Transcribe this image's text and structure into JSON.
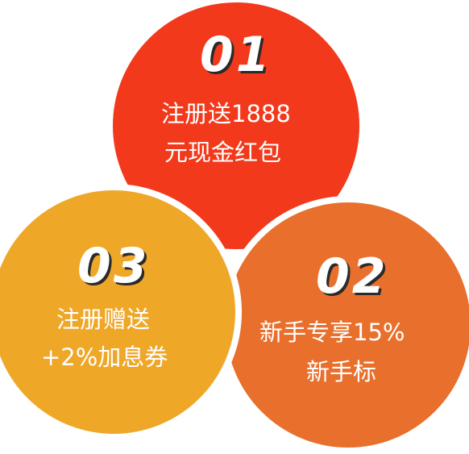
{
  "colors": {
    "circle_01": "#f2391b",
    "circle_02": "#e8702c",
    "circle_03": "#efa728",
    "text": "#ffffff",
    "number_shadow": "#2a2a2a"
  },
  "items": [
    {
      "number": "01",
      "line1": "注册送1888",
      "line2": "元现金红包"
    },
    {
      "number": "02",
      "line1": "新手专享15%",
      "line2": "新手标"
    },
    {
      "number": "03",
      "line1": "注册赠送",
      "line2": "+2%加息券"
    }
  ]
}
